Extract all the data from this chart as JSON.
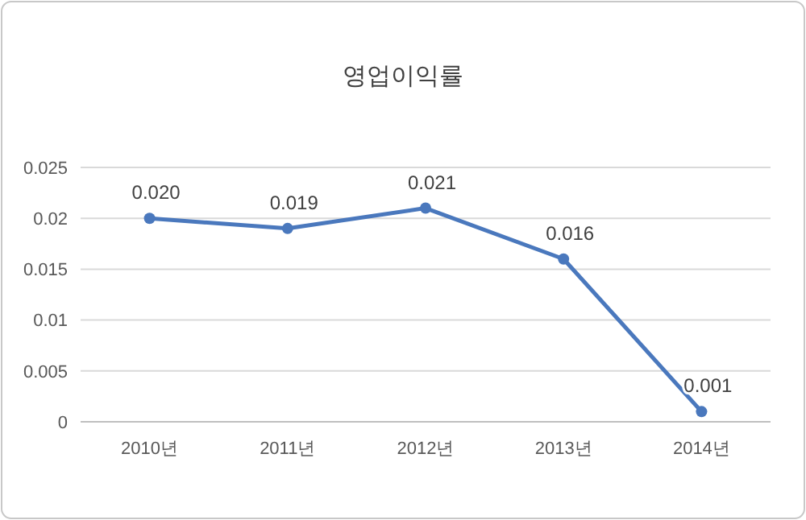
{
  "chart_data": {
    "type": "line",
    "title": "영업이익률",
    "categories": [
      "2010년",
      "2011년",
      "2012년",
      "2013년",
      "2014년"
    ],
    "series": [
      {
        "color": "#4a78bd",
        "values": [
          0.02,
          0.019,
          0.021,
          0.016,
          0.001
        ],
        "value_labels": [
          "0.020",
          "0.019",
          "0.021",
          "0.016",
          "0.001"
        ]
      }
    ],
    "ylim": [
      0,
      0.025
    ],
    "yticks": [
      0,
      {
        "value": 0.005,
        "label": "0.005"
      },
      {
        "value": 0.01,
        "label": "0.01"
      },
      {
        "value": 0.015,
        "label": "0.015"
      },
      {
        "value": 0.02,
        "label": "0.02"
      },
      {
        "value": 0.025,
        "label": "0.025"
      }
    ],
    "grid": "y",
    "marker": "circle",
    "line_style": "solid"
  }
}
